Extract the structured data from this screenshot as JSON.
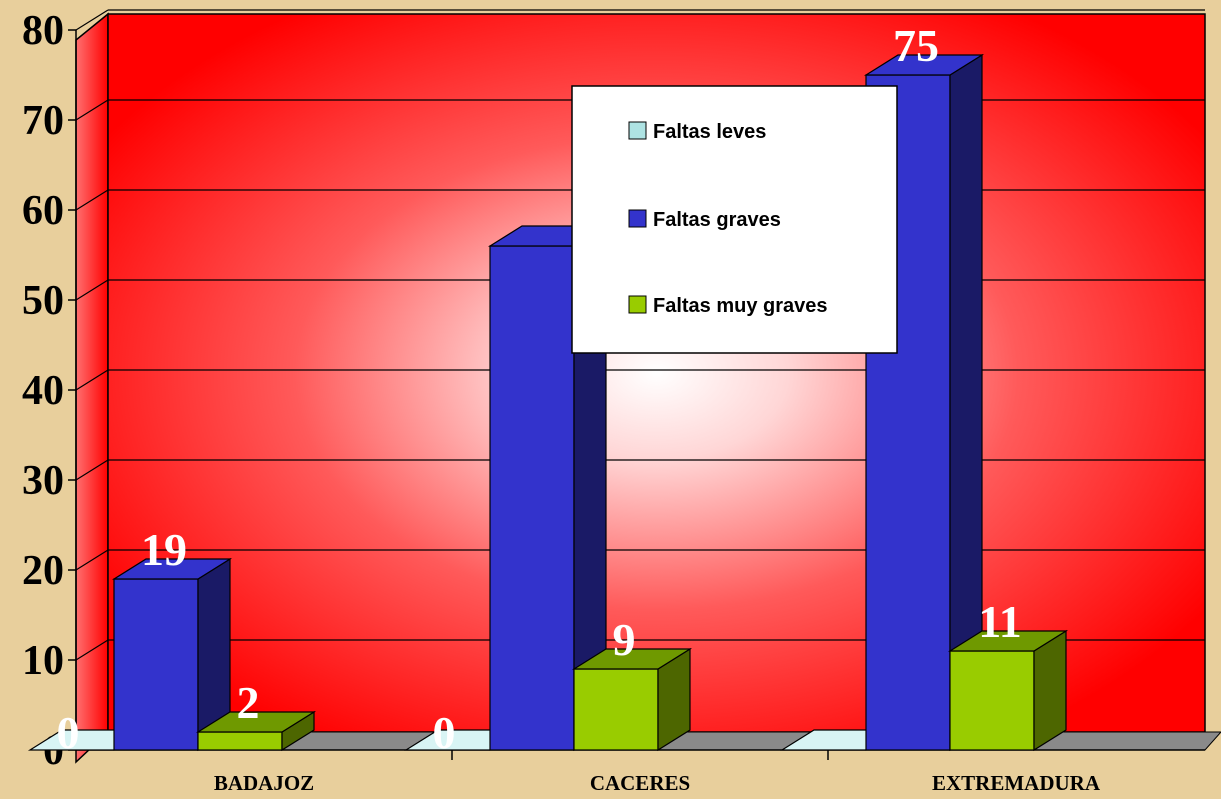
{
  "chart_data": {
    "type": "bar",
    "title": "",
    "xlabel": "",
    "ylabel": "",
    "categories": [
      "BADAJOZ",
      "CACERES",
      "EXTREMADURA"
    ],
    "series": [
      {
        "name": "Faltas leves",
        "values": [
          0,
          0,
          0
        ],
        "labels": [
          "0",
          "0",
          ""
        ]
      },
      {
        "name": "Faltas graves",
        "values": [
          19,
          56,
          75
        ],
        "labels": [
          "19",
          "",
          "75"
        ]
      },
      {
        "name": "Faltas muy graves",
        "values": [
          2,
          9,
          11
        ],
        "labels": [
          "2",
          "9",
          "11"
        ]
      }
    ],
    "ylim": [
      0,
      80
    ],
    "yticks": [
      0,
      10,
      20,
      30,
      40,
      50,
      60,
      70,
      80
    ],
    "grid": true,
    "legend_position": "top-center",
    "colors": {
      "plot_background": "#ff0000",
      "background": "#e8cf9c",
      "floor": "#8a8a8a",
      "series": [
        "#aee3e3",
        "#3333cc",
        "#99cc00"
      ],
      "series_side": [
        "#6fa7a7",
        "#1a1a66",
        "#4d6600"
      ],
      "series_top": [
        "#d8f4f4",
        "#3333cc",
        "#6f9900"
      ]
    }
  }
}
